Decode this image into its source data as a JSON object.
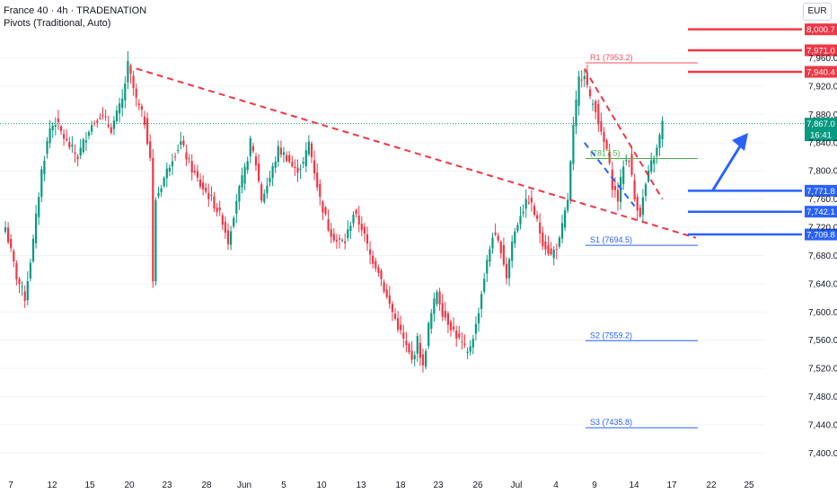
{
  "header": {
    "title": "France 40 · 4h · TRADENATION",
    "indicator": "Pivots (Traditional, Auto)",
    "currency": "EUR"
  },
  "colors": {
    "up": "#089981",
    "down": "#f23645",
    "resistance": "#f23645",
    "support": "#2962ff",
    "trend": "#f23645",
    "channel": "#2962ff",
    "pivot_r": "#f7525f",
    "pivot_p": "#4caf50",
    "pivot_s": "#2962ff",
    "arrow": "#2962ff"
  },
  "chart_data": {
    "type": "candlestick",
    "ylim": [
      7380,
      8020
    ],
    "y_ticks": [
      "7,960.0",
      "7,920.0",
      "7,880.0",
      "7,840.0",
      "7,800.0",
      "7,760.0",
      "7,720.0",
      "7,680.0",
      "7,640.0",
      "7,600.0",
      "7,560.0",
      "7,520.0",
      "7,480.0",
      "7,440.0",
      "7,400.0"
    ],
    "x_ticks": [
      "7",
      "12",
      "15",
      "20",
      "23",
      "28",
      "Jun",
      "5",
      "10",
      "13",
      "18",
      "23",
      "26",
      "Jul",
      "4",
      "9",
      "14",
      "17",
      "22",
      "25"
    ],
    "price_labels": [
      {
        "text": "8,000.7",
        "value": 8000.7,
        "kind": "resistance"
      },
      {
        "text": "7,971.0",
        "value": 7971.0,
        "kind": "resistance"
      },
      {
        "text": "7,940.4",
        "value": 7940.4,
        "kind": "resistance"
      },
      {
        "text": "7,867.0",
        "value": 7867.0,
        "kind": "current",
        "timer": "16:41"
      },
      {
        "text": "7,771.8",
        "value": 7771.8,
        "kind": "support"
      },
      {
        "text": "7,742.1",
        "value": 7742.1,
        "kind": "support"
      },
      {
        "text": "7,709.8",
        "value": 7709.8,
        "kind": "support"
      }
    ],
    "pivots": [
      {
        "label": "R1 (7953.2)",
        "value": 7953.2,
        "kind": "R"
      },
      {
        "label": "(7817.5)",
        "value": 7817.5,
        "kind": "P"
      },
      {
        "label": "S1 (7694.5)",
        "value": 7694.5,
        "kind": "S"
      },
      {
        "label": "S2 (7559.2)",
        "value": 7559.2,
        "kind": "S"
      },
      {
        "label": "S3 (7435.8)",
        "value": 7435.8,
        "kind": "S"
      }
    ],
    "current_price": 7867.0,
    "anchors": [
      [
        0,
        7720
      ],
      [
        4,
        7650
      ],
      [
        7,
        7620
      ],
      [
        10,
        7700
      ],
      [
        13,
        7800
      ],
      [
        16,
        7860
      ],
      [
        18,
        7870
      ],
      [
        22,
        7840
      ],
      [
        26,
        7820
      ],
      [
        30,
        7860
      ],
      [
        34,
        7880
      ],
      [
        38,
        7860
      ],
      [
        42,
        7900
      ],
      [
        44,
        7950
      ],
      [
        47,
        7900
      ],
      [
        50,
        7870
      ],
      [
        52,
        7820
      ],
      [
        53,
        7640
      ],
      [
        54,
        7760
      ],
      [
        57,
        7790
      ],
      [
        60,
        7820
      ],
      [
        63,
        7840
      ],
      [
        66,
        7810
      ],
      [
        70,
        7780
      ],
      [
        74,
        7760
      ],
      [
        78,
        7730
      ],
      [
        80,
        7700
      ],
      [
        83,
        7760
      ],
      [
        86,
        7800
      ],
      [
        88,
        7840
      ],
      [
        90,
        7810
      ],
      [
        92,
        7760
      ],
      [
        95,
        7790
      ],
      [
        98,
        7830
      ],
      [
        101,
        7820
      ],
      [
        104,
        7800
      ],
      [
        107,
        7810
      ],
      [
        109,
        7840
      ],
      [
        111,
        7800
      ],
      [
        113,
        7760
      ],
      [
        116,
        7720
      ],
      [
        119,
        7700
      ],
      [
        122,
        7700
      ],
      [
        125,
        7740
      ],
      [
        128,
        7720
      ],
      [
        131,
        7680
      ],
      [
        134,
        7660
      ],
      [
        137,
        7620
      ],
      [
        140,
        7590
      ],
      [
        143,
        7560
      ],
      [
        146,
        7530
      ],
      [
        148,
        7560
      ],
      [
        150,
        7520
      ],
      [
        152,
        7580
      ],
      [
        155,
        7630
      ],
      [
        157,
        7600
      ],
      [
        160,
        7580
      ],
      [
        163,
        7560
      ],
      [
        166,
        7540
      ],
      [
        169,
        7580
      ],
      [
        172,
        7650
      ],
      [
        175,
        7710
      ],
      [
        178,
        7690
      ],
      [
        180,
        7650
      ],
      [
        182,
        7700
      ],
      [
        185,
        7740
      ],
      [
        188,
        7760
      ],
      [
        190,
        7740
      ],
      [
        193,
        7700
      ],
      [
        196,
        7680
      ],
      [
        199,
        7700
      ],
      [
        202,
        7760
      ],
      [
        204,
        7860
      ],
      [
        206,
        7930
      ],
      [
        208,
        7940
      ],
      [
        210,
        7900
      ],
      [
        212,
        7890
      ],
      [
        214,
        7850
      ],
      [
        216,
        7830
      ],
      [
        218,
        7780
      ],
      [
        220,
        7760
      ],
      [
        222,
        7810
      ],
      [
        224,
        7820
      ],
      [
        226,
        7760
      ],
      [
        228,
        7740
      ],
      [
        230,
        7780
      ],
      [
        232,
        7810
      ],
      [
        234,
        7830
      ],
      [
        236,
        7867
      ]
    ]
  }
}
